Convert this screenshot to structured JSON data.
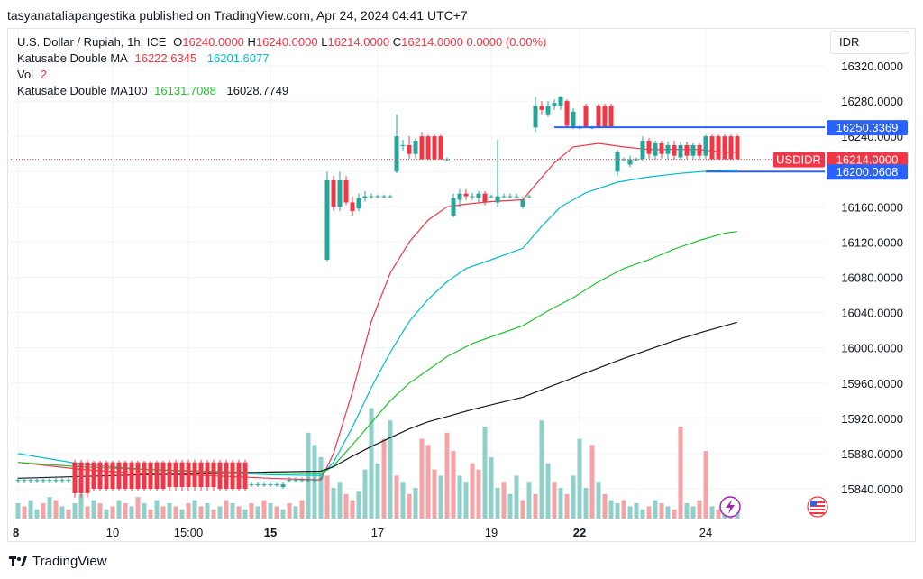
{
  "header": {
    "publisher_text": "tasyanataliapangestika published on TradingView.com, Apr 24, 2024 04:41 UTC+7"
  },
  "legend": {
    "symbol": "U.S. Dollar / Rupiah, 1h, ICE",
    "o_label": "O",
    "o_value": "16240.0000",
    "h_label": "H",
    "h_value": "16240.0000",
    "l_label": "L",
    "l_value": "16214.0000",
    "c_label": "C",
    "c_value": "16214.0000",
    "change": "0.0000 (0.00%)",
    "ma_name": "Katusabe Double MA",
    "ma_v1": "16222.6345",
    "ma_v2": "16201.6077",
    "vol_name": "Vol",
    "vol_value": "2",
    "ma100_name": "Katusabe Double MA100",
    "ma100_v1": "16131.7088",
    "ma100_v2": "16028.7749"
  },
  "currency_button": "IDR",
  "footer": {
    "brand": "TradingView"
  },
  "colors": {
    "up": "#26a69a",
    "down": "#f23645",
    "ma_fast": "#f23645",
    "ma_slow": "#00bcd4",
    "ma100_fast": "#22c32e",
    "ma100_slow": "#131722",
    "hline": "#2962ff",
    "vol_up": "#8fd0c9",
    "vol_down": "#f5a3a7"
  },
  "chart_data": {
    "type": "candlestick",
    "y_range": [
      15820,
      16340
    ],
    "y_ticks": [
      "16320.0000",
      "16280.0000",
      "16240.0000",
      "16200.0000",
      "16160.0000",
      "16120.0000",
      "16080.0000",
      "16040.0000",
      "16000.0000",
      "15960.0000",
      "15920.0000",
      "15880.0000",
      "15840.0000"
    ],
    "y_tick_values": [
      16320,
      16280,
      16240,
      16200,
      16160,
      16120,
      16080,
      16040,
      16000,
      15960,
      15920,
      15880,
      15840
    ],
    "x_ticks": [
      {
        "label": "8",
        "bold": true,
        "i": 0
      },
      {
        "label": "10",
        "bold": false,
        "i": 15
      },
      {
        "label": "15:00",
        "bold": false,
        "i": 27
      },
      {
        "label": "15",
        "bold": true,
        "i": 40
      },
      {
        "label": "17",
        "bold": false,
        "i": 57
      },
      {
        "label": "19",
        "bold": false,
        "i": 75
      },
      {
        "label": "22",
        "bold": true,
        "i": 89
      },
      {
        "label": "24",
        "bold": false,
        "i": 109
      }
    ],
    "price_labels": [
      {
        "text": "16250.3369",
        "value": 16250.3369,
        "color": "#2962ff",
        "line": true,
        "line_from_i": 85
      },
      {
        "text": "16214.0000",
        "value": 16214,
        "color": "#f23645",
        "symbol": "USDIDR"
      },
      {
        "text": "16200.0608",
        "value": 16200.0608,
        "color": "#2962ff",
        "line": true,
        "line_from_i": 109
      }
    ],
    "current_price": 16214,
    "candles_ohlc_segments": [
      {
        "from": 0,
        "to": 8,
        "o": 15850,
        "h": 15853,
        "l": 15847,
        "c": 15850
      },
      {
        "from": 9,
        "to": 11,
        "o": 15870,
        "h": 15873,
        "l": 15830,
        "c": 15835
      },
      {
        "from": 12,
        "to": 23,
        "o": 15870,
        "h": 15872,
        "l": 15838,
        "c": 15840
      },
      {
        "from": 24,
        "to": 31,
        "o": 15870,
        "h": 15873,
        "l": 15838,
        "c": 15842
      },
      {
        "from": 32,
        "to": 36,
        "o": 15870,
        "h": 15873,
        "l": 15838,
        "c": 15840
      },
      {
        "from": 37,
        "to": 41,
        "o": 15845,
        "h": 15848,
        "l": 15842,
        "c": 15845
      },
      {
        "from": 42,
        "to": 42,
        "o": 15842,
        "h": 15848,
        "l": 15840,
        "c": 15845
      },
      {
        "from": 43,
        "to": 47,
        "o": 15850,
        "h": 15853,
        "l": 15848,
        "c": 15850
      },
      {
        "from": 48,
        "to": 48,
        "o": 15852,
        "h": 15854,
        "l": 15850,
        "c": 15852
      }
    ],
    "candles": [
      {
        "i": 49,
        "o": 16100,
        "h": 16200,
        "l": 16098,
        "c": 16190
      },
      {
        "i": 50,
        "o": 16190,
        "h": 16195,
        "l": 16155,
        "c": 16160
      },
      {
        "i": 51,
        "o": 16160,
        "h": 16200,
        "l": 16155,
        "c": 16190
      },
      {
        "i": 52,
        "o": 16190,
        "h": 16195,
        "l": 16162,
        "c": 16165
      },
      {
        "i": 53,
        "o": 16165,
        "h": 16172,
        "l": 16150,
        "c": 16155
      },
      {
        "i": 54,
        "o": 16158,
        "h": 16175,
        "l": 16155,
        "c": 16170
      },
      {
        "i": 55,
        "o": 16170,
        "h": 16178,
        "l": 16166,
        "c": 16172
      },
      {
        "i": 56,
        "o": 16172,
        "h": 16175,
        "l": 16169,
        "c": 16172
      },
      {
        "i": 57,
        "o": 16172,
        "h": 16174,
        "l": 16170,
        "c": 16172
      },
      {
        "i": 58,
        "o": 16172,
        "h": 16174,
        "l": 16170,
        "c": 16172
      },
      {
        "i": 59,
        "o": 16172,
        "h": 16174,
        "l": 16170,
        "c": 16172
      },
      {
        "i": 60,
        "o": 16200,
        "h": 16265,
        "l": 16198,
        "c": 16240
      },
      {
        "i": 61,
        "o": 16230,
        "h": 16236,
        "l": 16224,
        "c": 16230
      },
      {
        "i": 62,
        "o": 16230,
        "h": 16240,
        "l": 16215,
        "c": 16220
      },
      {
        "i": 63,
        "o": 16220,
        "h": 16238,
        "l": 16215,
        "c": 16235
      },
      {
        "i": 64,
        "o": 16240,
        "h": 16245,
        "l": 16214,
        "c": 16214
      },
      {
        "i": 65,
        "o": 16240,
        "h": 16242,
        "l": 16214,
        "c": 16214
      },
      {
        "i": 66,
        "o": 16240,
        "h": 16242,
        "l": 16214,
        "c": 16214
      },
      {
        "i": 67,
        "o": 16240,
        "h": 16242,
        "l": 16214,
        "c": 16214
      },
      {
        "i": 68,
        "o": 16214,
        "h": 16216,
        "l": 16212,
        "c": 16214
      },
      {
        "i": 69,
        "o": 16150,
        "h": 16175,
        "l": 16148,
        "c": 16170
      },
      {
        "i": 70,
        "o": 16168,
        "h": 16180,
        "l": 16160,
        "c": 16175
      },
      {
        "i": 71,
        "o": 16175,
        "h": 16180,
        "l": 16168,
        "c": 16172
      },
      {
        "i": 72,
        "o": 16172,
        "h": 16176,
        "l": 16168,
        "c": 16172
      },
      {
        "i": 73,
        "o": 16170,
        "h": 16178,
        "l": 16165,
        "c": 16175
      },
      {
        "i": 74,
        "o": 16175,
        "h": 16178,
        "l": 16162,
        "c": 16165
      },
      {
        "i": 75,
        "o": 16172,
        "h": 16174,
        "l": 16170,
        "c": 16172
      },
      {
        "i": 76,
        "o": 16165,
        "h": 16236,
        "l": 16160,
        "c": 16172
      },
      {
        "i": 77,
        "o": 16172,
        "h": 16175,
        "l": 16170,
        "c": 16172
      },
      {
        "i": 78,
        "o": 16172,
        "h": 16175,
        "l": 16170,
        "c": 16172
      },
      {
        "i": 79,
        "o": 16172,
        "h": 16175,
        "l": 16170,
        "c": 16172
      },
      {
        "i": 80,
        "o": 16160,
        "h": 16172,
        "l": 16158,
        "c": 16168
      },
      {
        "i": 81,
        "o": 16172,
        "h": 16174,
        "l": 16170,
        "c": 16172
      },
      {
        "i": 82,
        "o": 16250,
        "h": 16285,
        "l": 16245,
        "c": 16275
      },
      {
        "i": 83,
        "o": 16275,
        "h": 16280,
        "l": 16265,
        "c": 16270
      },
      {
        "i": 84,
        "o": 16265,
        "h": 16280,
        "l": 16262,
        "c": 16275
      },
      {
        "i": 85,
        "o": 16275,
        "h": 16282,
        "l": 16270,
        "c": 16278
      },
      {
        "i": 86,
        "o": 16275,
        "h": 16286,
        "l": 16270,
        "c": 16285
      },
      {
        "i": 87,
        "o": 16280,
        "h": 16282,
        "l": 16250,
        "c": 16252
      },
      {
        "i": 88,
        "o": 16250,
        "h": 16272,
        "l": 16248,
        "c": 16268
      },
      {
        "i": 89,
        "o": 16250,
        "h": 16252,
        "l": 16248,
        "c": 16250
      },
      {
        "i": 90,
        "o": 16275,
        "h": 16277,
        "l": 16250,
        "c": 16250
      },
      {
        "i": 91,
        "o": 16250,
        "h": 16252,
        "l": 16248,
        "c": 16250
      },
      {
        "i": 92,
        "o": 16275,
        "h": 16277,
        "l": 16250,
        "c": 16250
      },
      {
        "i": 93,
        "o": 16275,
        "h": 16277,
        "l": 16250,
        "c": 16250
      },
      {
        "i": 94,
        "o": 16275,
        "h": 16277,
        "l": 16250,
        "c": 16250
      },
      {
        "i": 95,
        "o": 16200,
        "h": 16225,
        "l": 16195,
        "c": 16222
      },
      {
        "i": 96,
        "o": 16214,
        "h": 16216,
        "l": 16212,
        "c": 16214
      },
      {
        "i": 97,
        "o": 16208,
        "h": 16218,
        "l": 16205,
        "c": 16214
      },
      {
        "i": 98,
        "o": 16214,
        "h": 16216,
        "l": 16212,
        "c": 16214
      },
      {
        "i": 99,
        "o": 16214,
        "h": 16240,
        "l": 16212,
        "c": 16235
      },
      {
        "i": 100,
        "o": 16235,
        "h": 16238,
        "l": 16215,
        "c": 16220
      },
      {
        "i": 101,
        "o": 16218,
        "h": 16235,
        "l": 16214,
        "c": 16232
      },
      {
        "i": 102,
        "o": 16232,
        "h": 16235,
        "l": 16215,
        "c": 16220
      },
      {
        "i": 103,
        "o": 16220,
        "h": 16234,
        "l": 16214,
        "c": 16230
      },
      {
        "i": 104,
        "o": 16230,
        "h": 16235,
        "l": 16214,
        "c": 16218
      },
      {
        "i": 105,
        "o": 16216,
        "h": 16234,
        "l": 16214,
        "c": 16230
      },
      {
        "i": 106,
        "o": 16230,
        "h": 16234,
        "l": 16214,
        "c": 16218
      },
      {
        "i": 107,
        "o": 16218,
        "h": 16232,
        "l": 16214,
        "c": 16230
      },
      {
        "i": 108,
        "o": 16230,
        "h": 16232,
        "l": 16214,
        "c": 16218
      },
      {
        "i": 109,
        "o": 16218,
        "h": 16242,
        "l": 16214,
        "c": 16240
      },
      {
        "i": 110,
        "o": 16240,
        "h": 16242,
        "l": 16214,
        "c": 16214
      },
      {
        "i": 111,
        "o": 16240,
        "h": 16242,
        "l": 16214,
        "c": 16214
      },
      {
        "i": 112,
        "o": 16240,
        "h": 16242,
        "l": 16214,
        "c": 16214
      },
      {
        "i": 113,
        "o": 16240,
        "h": 16242,
        "l": 16214,
        "c": 16214
      },
      {
        "i": 114,
        "o": 16240,
        "h": 16242,
        "l": 16214,
        "c": 16214
      }
    ],
    "ma_lines": [
      {
        "name": "ma_fast",
        "color": "#f23645",
        "points": [
          [
            0,
            15870
          ],
          [
            10,
            15862
          ],
          [
            20,
            15857
          ],
          [
            30,
            15855
          ],
          [
            40,
            15852
          ],
          [
            48,
            15850
          ],
          [
            50,
            15880
          ],
          [
            53,
            15950
          ],
          [
            56,
            16030
          ],
          [
            59,
            16085
          ],
          [
            62,
            16120
          ],
          [
            65,
            16145
          ],
          [
            68,
            16160
          ],
          [
            71,
            16163
          ],
          [
            75,
            16166
          ],
          [
            80,
            16168
          ],
          [
            82,
            16185
          ],
          [
            85,
            16210
          ],
          [
            88,
            16228
          ],
          [
            92,
            16232
          ],
          [
            96,
            16228
          ],
          [
            100,
            16225
          ],
          [
            104,
            16225
          ],
          [
            108,
            16225
          ],
          [
            112,
            16222
          ],
          [
            114,
            16222
          ]
        ]
      },
      {
        "name": "ma_slow",
        "color": "#00bcd4",
        "points": [
          [
            0,
            15880
          ],
          [
            10,
            15868
          ],
          [
            20,
            15862
          ],
          [
            30,
            15859
          ],
          [
            40,
            15856
          ],
          [
            48,
            15855
          ],
          [
            50,
            15870
          ],
          [
            53,
            15910
          ],
          [
            56,
            15955
          ],
          [
            59,
            15995
          ],
          [
            62,
            16030
          ],
          [
            65,
            16055
          ],
          [
            68,
            16075
          ],
          [
            71,
            16090
          ],
          [
            75,
            16100
          ],
          [
            80,
            16113
          ],
          [
            83,
            16138
          ],
          [
            86,
            16160
          ],
          [
            90,
            16176
          ],
          [
            95,
            16188
          ],
          [
            100,
            16194
          ],
          [
            105,
            16198
          ],
          [
            110,
            16201
          ],
          [
            114,
            16202
          ]
        ]
      },
      {
        "name": "ma100_fast",
        "color": "#22c32e",
        "points": [
          [
            0,
            15870
          ],
          [
            10,
            15865
          ],
          [
            20,
            15862
          ],
          [
            30,
            15860
          ],
          [
            40,
            15858
          ],
          [
            48,
            15857
          ],
          [
            50,
            15866
          ],
          [
            53,
            15890
          ],
          [
            56,
            15915
          ],
          [
            59,
            15940
          ],
          [
            62,
            15960
          ],
          [
            65,
            15975
          ],
          [
            68,
            15990
          ],
          [
            72,
            16005
          ],
          [
            76,
            16015
          ],
          [
            80,
            16025
          ],
          [
            84,
            16042
          ],
          [
            88,
            16057
          ],
          [
            92,
            16075
          ],
          [
            96,
            16090
          ],
          [
            100,
            16100
          ],
          [
            104,
            16112
          ],
          [
            108,
            16122
          ],
          [
            112,
            16130
          ],
          [
            114,
            16132
          ]
        ]
      },
      {
        "name": "ma100_slow",
        "color": "#131722",
        "points": [
          [
            0,
            15852
          ],
          [
            10,
            15854
          ],
          [
            20,
            15856
          ],
          [
            30,
            15857
          ],
          [
            40,
            15859
          ],
          [
            48,
            15860
          ],
          [
            50,
            15865
          ],
          [
            53,
            15877
          ],
          [
            56,
            15888
          ],
          [
            59,
            15898
          ],
          [
            62,
            15908
          ],
          [
            65,
            15916
          ],
          [
            68,
            15922
          ],
          [
            72,
            15930
          ],
          [
            76,
            15937
          ],
          [
            80,
            15944
          ],
          [
            84,
            15955
          ],
          [
            88,
            15966
          ],
          [
            92,
            15977
          ],
          [
            96,
            15988
          ],
          [
            100,
            15998
          ],
          [
            104,
            16008
          ],
          [
            108,
            16017
          ],
          [
            112,
            16025
          ],
          [
            114,
            16029
          ]
        ]
      }
    ],
    "volume": [
      5,
      4,
      6,
      3,
      5,
      7,
      6,
      4,
      3,
      5,
      8,
      4,
      6,
      5,
      3,
      4,
      6,
      5,
      4,
      7,
      5,
      3,
      6,
      4,
      5,
      4,
      3,
      5,
      6,
      4,
      5,
      3,
      4,
      6,
      5,
      4,
      3,
      5,
      4,
      6,
      5,
      4,
      3,
      5,
      4,
      6,
      28,
      24,
      20,
      14,
      10,
      12,
      8,
      6,
      9,
      16,
      36,
      18,
      26,
      32,
      14,
      12,
      8,
      10,
      26,
      24,
      16,
      14,
      28,
      22,
      14,
      12,
      18,
      16,
      30,
      20,
      10,
      12,
      8,
      14,
      6,
      12,
      8,
      32,
      18,
      12,
      10,
      8,
      14,
      26,
      10,
      24,
      12,
      8,
      6,
      5,
      6,
      4,
      5,
      3,
      4,
      6,
      5,
      4,
      3,
      30,
      5,
      4,
      6,
      22,
      4,
      3,
      5,
      3,
      4
    ],
    "volume_up": [
      1,
      0,
      1,
      1,
      0,
      1,
      0,
      1,
      0,
      1,
      1,
      0,
      1,
      0,
      1,
      0,
      1,
      0,
      1,
      0,
      1,
      0,
      1,
      0,
      1,
      0,
      1,
      0,
      1,
      0,
      1,
      0,
      1,
      0,
      1,
      0,
      1,
      0,
      1,
      0,
      1,
      0,
      1,
      0,
      1,
      0,
      1,
      1,
      1,
      0,
      1,
      1,
      0,
      0,
      1,
      1,
      1,
      1,
      0,
      1,
      0,
      1,
      0,
      1,
      0,
      0,
      0,
      1,
      0,
      0,
      1,
      1,
      0,
      0,
      1,
      1,
      1,
      0,
      1,
      1,
      0,
      1,
      0,
      1,
      1,
      0,
      1,
      0,
      1,
      1,
      1,
      0,
      1,
      0,
      1,
      1,
      0,
      1,
      1,
      1,
      0,
      1,
      0,
      1,
      0,
      0,
      1,
      1,
      0,
      0,
      1,
      0,
      1,
      0,
      1
    ]
  }
}
